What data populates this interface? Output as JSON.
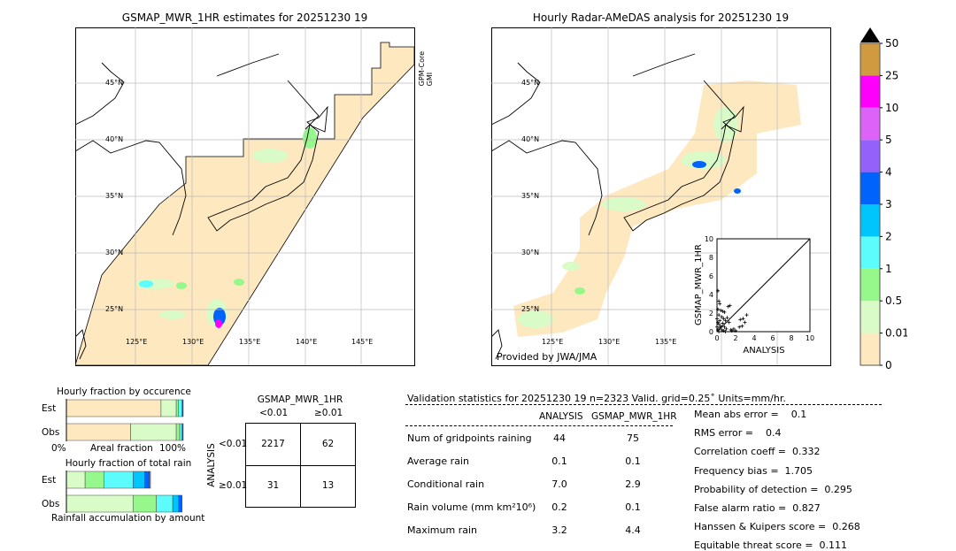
{
  "left_map": {
    "title": "GSMAP_MWR_1HR estimates for 20251230 19",
    "sensor_label": [
      "GPM-Core",
      "GMI"
    ],
    "lat_labels": [
      "45°N",
      "40°N",
      "35°N",
      "30°N",
      "25°N"
    ],
    "lon_labels": [
      "125°E",
      "130°E",
      "135°E",
      "140°E",
      "145°E"
    ]
  },
  "right_map": {
    "title": "Hourly Radar-AMeDAS analysis for 20251230 19",
    "credit": "Provided by JWA/JMA",
    "lat_labels": [
      "45°N",
      "40°N",
      "35°N",
      "30°N",
      "25°N"
    ],
    "lon_labels": [
      "125°E",
      "130°E",
      "135°E"
    ]
  },
  "colorbar": {
    "ticks": [
      "0",
      "0.01",
      "0.5",
      "1",
      "2",
      "3",
      "4",
      "5",
      "10",
      "25",
      "50"
    ],
    "colors": [
      "#fee8c0",
      "#d9fbc8",
      "#96f88a",
      "#5cfcfc",
      "#00c4fc",
      "#0063fc",
      "#9462fa",
      "#dc62f8",
      "#fc00fc",
      "#d09a40"
    ],
    "extend_color": "#000000"
  },
  "chart_data": [
    {
      "type": "scatter",
      "xlabel": "ANALYSIS",
      "ylabel": "GSMAP_MWR_1HR",
      "xlim": [
        0,
        10
      ],
      "ylim": [
        0,
        10
      ],
      "ticks": [
        "0",
        "2",
        "4",
        "6",
        "8",
        "10"
      ],
      "diagonal": true,
      "points": [
        [
          0.1,
          4.4
        ],
        [
          0.2,
          3.3
        ],
        [
          0.3,
          3.0
        ],
        [
          0.1,
          2.4
        ],
        [
          0.4,
          2.3
        ],
        [
          0.6,
          2.2
        ],
        [
          0.8,
          2.1
        ],
        [
          1.2,
          2.7
        ],
        [
          1.4,
          2.8
        ],
        [
          0.2,
          1.8
        ],
        [
          0.5,
          1.6
        ],
        [
          0.7,
          1.4
        ],
        [
          0.9,
          1.2
        ],
        [
          1.1,
          1.5
        ],
        [
          1.3,
          1.0
        ],
        [
          0.3,
          1.2
        ],
        [
          0.1,
          1.0
        ],
        [
          0.2,
          0.8
        ],
        [
          0.4,
          0.6
        ],
        [
          0.6,
          0.9
        ],
        [
          0.8,
          0.5
        ],
        [
          1.0,
          0.3
        ],
        [
          0.3,
          0.4
        ],
        [
          0.1,
          0.2
        ],
        [
          0.5,
          0.2
        ],
        [
          0.7,
          0.1
        ],
        [
          1.5,
          0.2
        ],
        [
          1.8,
          0.3
        ],
        [
          2.0,
          0.1
        ],
        [
          2.5,
          1.3
        ],
        [
          2.8,
          1.4
        ],
        [
          3.2,
          1.8
        ],
        [
          2.7,
          0.6
        ],
        [
          2.4,
          0.5
        ],
        [
          3.0,
          1.0
        ],
        [
          1.6,
          0.1
        ],
        [
          0.2,
          0.0
        ],
        [
          0.0,
          0.5
        ],
        [
          0.0,
          1.4
        ],
        [
          0.9,
          0.0
        ]
      ]
    },
    {
      "type": "bar",
      "title": "Hourly fraction by occurence",
      "xlabel": "Areal fraction",
      "categories": [
        "Est",
        "Obs"
      ],
      "x_ticks": [
        "0%",
        "100%"
      ],
      "series_colors": [
        "#fee8c0",
        "#d9fbc8",
        "#96f88a",
        "#5cfcfc",
        "#00c4fc",
        "#0063fc"
      ],
      "values": [
        [
          0.81,
          0.13,
          0.02,
          0.03,
          0.005,
          0.005
        ],
        [
          0.55,
          0.39,
          0.03,
          0.02,
          0.005,
          0.005
        ]
      ]
    },
    {
      "type": "bar",
      "title": "Hourly fraction of total rain",
      "xlabel": "Rainfall accumulation by amount",
      "categories": [
        "Est",
        "Obs"
      ],
      "series_colors": [
        "#d9fbc8",
        "#96f88a",
        "#5cfcfc",
        "#00c4fc",
        "#0063fc",
        "#9462fa"
      ],
      "values": [
        [
          0.16,
          0.16,
          0.25,
          0.1,
          0.04,
          0.01
        ],
        [
          0.57,
          0.2,
          0.14,
          0.05,
          0.03,
          0.0
        ]
      ]
    }
  ],
  "contingency": {
    "title": "GSMAP_MWR_1HR",
    "col_headers": [
      "<0.01",
      "≥0.01"
    ],
    "row_axis": "ANALYSIS",
    "row_headers": [
      "<0.01",
      "≥0.01"
    ],
    "cells": [
      [
        "2217",
        "62"
      ],
      [
        "31",
        "13"
      ]
    ]
  },
  "validation": {
    "header": "Validation statistics for 20251230 19  n=2323 Valid. grid=0.25˚ Units=mm/hr.",
    "col_headers": [
      "ANALYSIS",
      "GSMAP_MWR_1HR"
    ],
    "rows": [
      {
        "label": "Num of gridpoints raining",
        "a": "44",
        "g": "75"
      },
      {
        "label": "Average rain",
        "a": "0.1",
        "g": "0.1"
      },
      {
        "label": "Conditional rain",
        "a": "7.0",
        "g": "2.9"
      },
      {
        "label": "Rain volume (mm km²10⁶)",
        "a": "0.2",
        "g": "0.1"
      },
      {
        "label": "Maximum rain",
        "a": "3.2",
        "g": "4.4"
      }
    ],
    "scores": [
      "Mean abs error =    0.1",
      "RMS error =    0.4",
      "Correlation coeff =  0.332",
      "Frequency bias =  1.705",
      "Probability of detection =  0.295",
      "False alarm ratio =  0.827",
      "Hanssen & Kuipers score =  0.268",
      "Equitable threat score =  0.111"
    ]
  }
}
